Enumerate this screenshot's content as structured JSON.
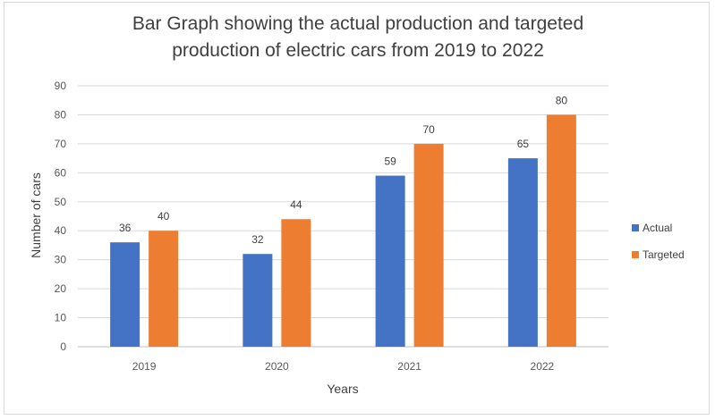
{
  "chart_data": {
    "type": "bar",
    "title_lines": [
      "Bar Graph showing the actual production and targeted",
      "production of electric cars from 2019 to 2022"
    ],
    "categories": [
      "2019",
      "2020",
      "2021",
      "2022"
    ],
    "series": [
      {
        "name": "Actual",
        "values": [
          36,
          32,
          59,
          65
        ],
        "color": "#4472C4"
      },
      {
        "name": "Targeted",
        "values": [
          40,
          44,
          70,
          80
        ],
        "color": "#ED7D31"
      }
    ],
    "xlabel": "Years",
    "ylabel": "Number of cars",
    "ylim": [
      0,
      90
    ],
    "yticks": [
      0,
      10,
      20,
      30,
      40,
      50,
      60,
      70,
      80,
      90
    ],
    "grid": true,
    "legend": "right",
    "data_labels": true
  }
}
